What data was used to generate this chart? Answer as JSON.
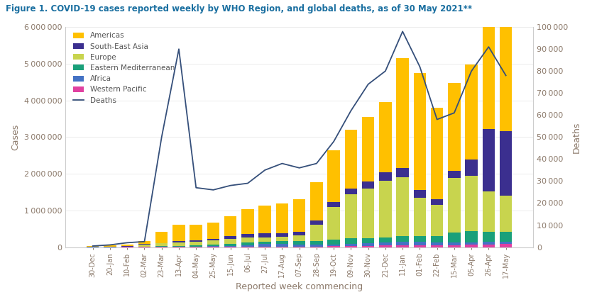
{
  "title": "Figure 1. COVID-19 cases reported weekly by WHO Region, and global deaths, as of 30 May 2021**",
  "xlabel": "Reported week commencing",
  "ylabel_left": "Cases",
  "ylabel_right": "Deaths",
  "title_color": "#1a6fa0",
  "axis_label_color": "#8c7a6b",
  "tick_label_color": "#8c7a6b",
  "background_color": "#ffffff",
  "categories": [
    "30-Dec",
    "20-Jan",
    "10-Feb",
    "02-Mar",
    "23-Mar",
    "13-Apr",
    "04-May",
    "25-May",
    "15-Jun",
    "06-Jul",
    "27-Jul",
    "17-Aug",
    "07-Sep",
    "28-Sep",
    "19-Oct",
    "09-Nov",
    "30-Nov",
    "21-Dec",
    "11-Jan",
    "01-Feb",
    "22-Feb",
    "15-Mar",
    "05-Apr",
    "26-Apr",
    "17-May"
  ],
  "americas": [
    20000,
    30000,
    50000,
    90000,
    300000,
    460000,
    420000,
    430000,
    550000,
    680000,
    750000,
    800000,
    900000,
    1050000,
    1400000,
    1600000,
    1750000,
    1900000,
    3000000,
    3200000,
    2500000,
    2400000,
    2600000,
    4700000,
    3500000
  ],
  "south_east_asia": [
    3000,
    5000,
    8000,
    12000,
    15000,
    25000,
    40000,
    55000,
    80000,
    100000,
    120000,
    100000,
    95000,
    110000,
    130000,
    160000,
    200000,
    240000,
    250000,
    200000,
    150000,
    180000,
    450000,
    1700000,
    1750000
  ],
  "europe": [
    3000,
    5000,
    10000,
    60000,
    80000,
    100000,
    100000,
    110000,
    120000,
    130000,
    110000,
    120000,
    160000,
    450000,
    900000,
    1200000,
    1350000,
    1550000,
    1600000,
    1050000,
    850000,
    1500000,
    1500000,
    1100000,
    1000000
  ],
  "eastern_med": [
    1500,
    2000,
    3000,
    6000,
    15000,
    22000,
    35000,
    45000,
    60000,
    70000,
    65000,
    70000,
    80000,
    100000,
    130000,
    150000,
    140000,
    130000,
    160000,
    160000,
    180000,
    270000,
    310000,
    270000,
    260000
  ],
  "africa": [
    800,
    1500,
    2000,
    3000,
    4000,
    6000,
    12000,
    18000,
    30000,
    50000,
    70000,
    80000,
    60000,
    50000,
    50000,
    60000,
    70000,
    80000,
    90000,
    95000,
    85000,
    75000,
    65000,
    75000,
    70000
  ],
  "western_pacific": [
    500,
    1000,
    1500,
    2000,
    2500,
    3000,
    4000,
    5000,
    7000,
    9000,
    11000,
    14000,
    16000,
    18000,
    22000,
    30000,
    38000,
    45000,
    55000,
    48000,
    40000,
    45000,
    60000,
    70000,
    80000
  ],
  "deaths": [
    500,
    1000,
    2000,
    2500,
    50000,
    90000,
    27000,
    26000,
    28000,
    29000,
    35000,
    38000,
    36000,
    38000,
    48000,
    62000,
    74000,
    80000,
    98000,
    82000,
    58000,
    61000,
    80000,
    91000,
    78000
  ],
  "colors": {
    "americas": "#FFC000",
    "south_east_asia": "#3B2F8F",
    "europe": "#C8D44E",
    "eastern_med": "#1AA07A",
    "africa": "#4472C4",
    "western_pacific": "#E040A0",
    "deaths_line": "#354F7A"
  },
  "ylim_cases": [
    0,
    6000000
  ],
  "ylim_deaths": [
    0,
    100000
  ],
  "yticks_cases": [
    0,
    1000000,
    2000000,
    3000000,
    4000000,
    5000000,
    6000000
  ],
  "yticks_deaths": [
    0,
    10000,
    20000,
    30000,
    40000,
    50000,
    60000,
    70000,
    80000,
    90000,
    100000
  ]
}
